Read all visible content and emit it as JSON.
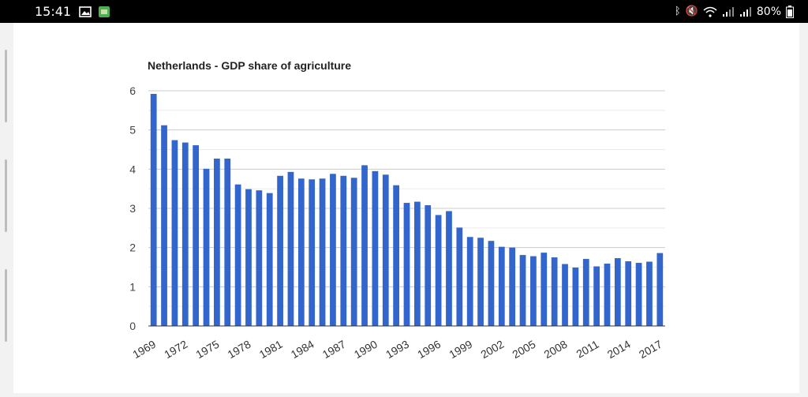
{
  "status_bar": {
    "time": "15:41",
    "battery": "80%",
    "icons": [
      "gallery-icon",
      "app-icon",
      "bluetooth-icon",
      "mute-icon",
      "wifi-icon",
      "signal-icon",
      "signal-icon-2",
      "battery-icon"
    ]
  },
  "colors": {
    "bar": "#3366cc",
    "grid": "#cccccc",
    "text": "#222222"
  },
  "chart_data": {
    "type": "bar",
    "title": "Netherlands - GDP share of agriculture",
    "xlabel": "",
    "ylabel": "",
    "ylim": [
      0,
      6
    ],
    "yticks": [
      0,
      1,
      2,
      3,
      4,
      5,
      6
    ],
    "grid": true,
    "legend": "none",
    "xtick_labels": [
      "1969",
      "1972",
      "1975",
      "1978",
      "1981",
      "1984",
      "1987",
      "1990",
      "1993",
      "1996",
      "1999",
      "2002",
      "2005",
      "2008",
      "2011",
      "2014",
      "2017"
    ],
    "categories": [
      "1969",
      "1970",
      "1971",
      "1972",
      "1973",
      "1974",
      "1975",
      "1976",
      "1977",
      "1978",
      "1979",
      "1980",
      "1981",
      "1982",
      "1983",
      "1984",
      "1985",
      "1986",
      "1987",
      "1988",
      "1989",
      "1990",
      "1991",
      "1992",
      "1993",
      "1994",
      "1995",
      "1996",
      "1997",
      "1998",
      "1999",
      "2000",
      "2001",
      "2002",
      "2003",
      "2004",
      "2005",
      "2006",
      "2007",
      "2008",
      "2009",
      "2010",
      "2011",
      "2012",
      "2013",
      "2014",
      "2015",
      "2016",
      "2017"
    ],
    "values": [
      5.92,
      5.12,
      4.74,
      4.68,
      4.61,
      4.01,
      4.27,
      4.27,
      3.61,
      3.49,
      3.46,
      3.39,
      3.83,
      3.93,
      3.76,
      3.74,
      3.76,
      3.88,
      3.83,
      3.78,
      4.1,
      3.95,
      3.86,
      3.59,
      3.14,
      3.17,
      3.08,
      2.83,
      2.93,
      2.51,
      2.27,
      2.25,
      2.17,
      2.02,
      2.0,
      1.81,
      1.78,
      1.87,
      1.75,
      1.58,
      1.49,
      1.71,
      1.52,
      1.59,
      1.73,
      1.65,
      1.61,
      1.64,
      1.86
    ]
  }
}
